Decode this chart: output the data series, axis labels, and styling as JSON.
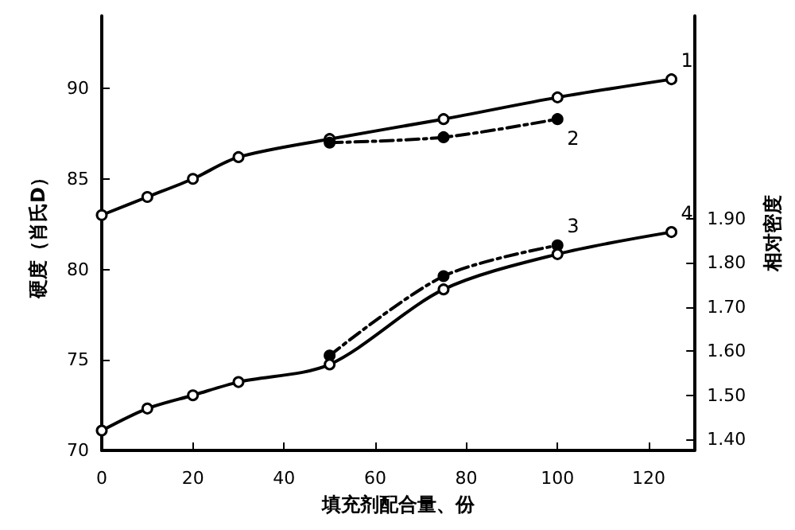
{
  "chart_data": {
    "type": "line",
    "xlabel": "填充剂配合量、份",
    "ylabel": "硬度（肖氏D）",
    "y2label": "相对密度",
    "xlim": [
      0,
      130
    ],
    "xticks": [
      0,
      20,
      40,
      60,
      80,
      100,
      120
    ],
    "ylim": [
      70,
      94
    ],
    "yticks": [
      70,
      75,
      80,
      85,
      90
    ],
    "y2lim": [
      1.375,
      2.36
    ],
    "y2ticks": [
      {
        "value": 1.4,
        "label": "1.40"
      },
      {
        "value": 1.5,
        "label": "1.50"
      },
      {
        "value": 1.6,
        "label": "1.60"
      },
      {
        "value": 1.7,
        "label": "1.70"
      },
      {
        "value": 1.8,
        "label": "1.80"
      },
      {
        "value": 1.9,
        "label": "1.90"
      }
    ],
    "marker": "circle",
    "grid": false,
    "legend": false,
    "series": [
      {
        "name": "1",
        "color": "#000000",
        "line_style": "solid",
        "x": [
          0,
          10,
          20,
          30,
          50,
          75,
          100,
          125
        ],
        "values": [
          83,
          84,
          85,
          86.2,
          87.2,
          88.3,
          89.5,
          90.5
        ]
      },
      {
        "name": "2",
        "color": "#000000",
        "line_style": "dashed",
        "x": [
          50,
          75,
          100
        ],
        "values": [
          87,
          87.3,
          88.3
        ]
      },
      {
        "name": "3",
        "color": "#000000",
        "line_style": "dashed",
        "axis": "y2",
        "x": [
          50,
          75,
          100
        ],
        "values": [
          1.59,
          1.77,
          1.84
        ]
      },
      {
        "name": "4",
        "color": "#000000",
        "line_style": "solid",
        "axis": "y2",
        "x": [
          0,
          10,
          20,
          30,
          50,
          75,
          100,
          125
        ],
        "values": [
          1.42,
          1.47,
          1.5,
          1.53,
          1.57,
          1.74,
          1.82,
          1.87
        ]
      }
    ]
  }
}
